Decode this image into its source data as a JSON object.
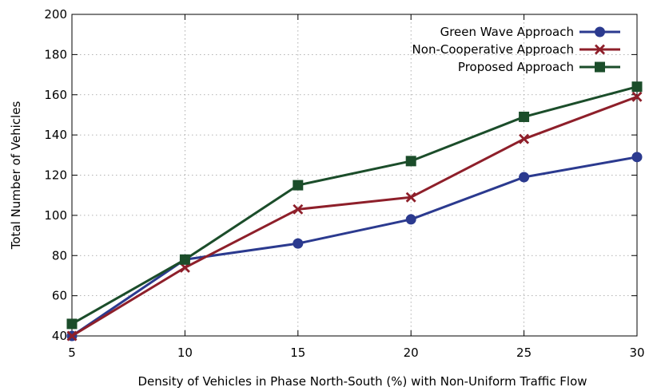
{
  "chart_data": {
    "type": "line",
    "xlabel": "Density of Vehicles in Phase North-South (%) with Non-Uniform Traffic Flow",
    "ylabel": "Total Number of Vehicles",
    "x": [
      5,
      10,
      15,
      20,
      25,
      30
    ],
    "xlim": [
      5,
      30
    ],
    "ylim": [
      40,
      200
    ],
    "xticks": [
      5,
      10,
      15,
      20,
      25,
      30
    ],
    "yticks": [
      40,
      60,
      80,
      100,
      120,
      140,
      160,
      180,
      200
    ],
    "grid": true,
    "legend_position": "top-right",
    "series": [
      {
        "name": "Green Wave Approach",
        "values": [
          40,
          78,
          86,
          98,
          119,
          129
        ],
        "color": "#2b3a8f",
        "marker": "circle"
      },
      {
        "name": "Non-Cooperative Approach",
        "values": [
          40,
          74,
          103,
          109,
          138,
          159
        ],
        "color": "#8e1f2a",
        "marker": "x"
      },
      {
        "name": "Proposed Approach",
        "values": [
          46,
          78,
          115,
          127,
          149,
          164
        ],
        "color": "#1b4d2a",
        "marker": "square"
      }
    ]
  }
}
